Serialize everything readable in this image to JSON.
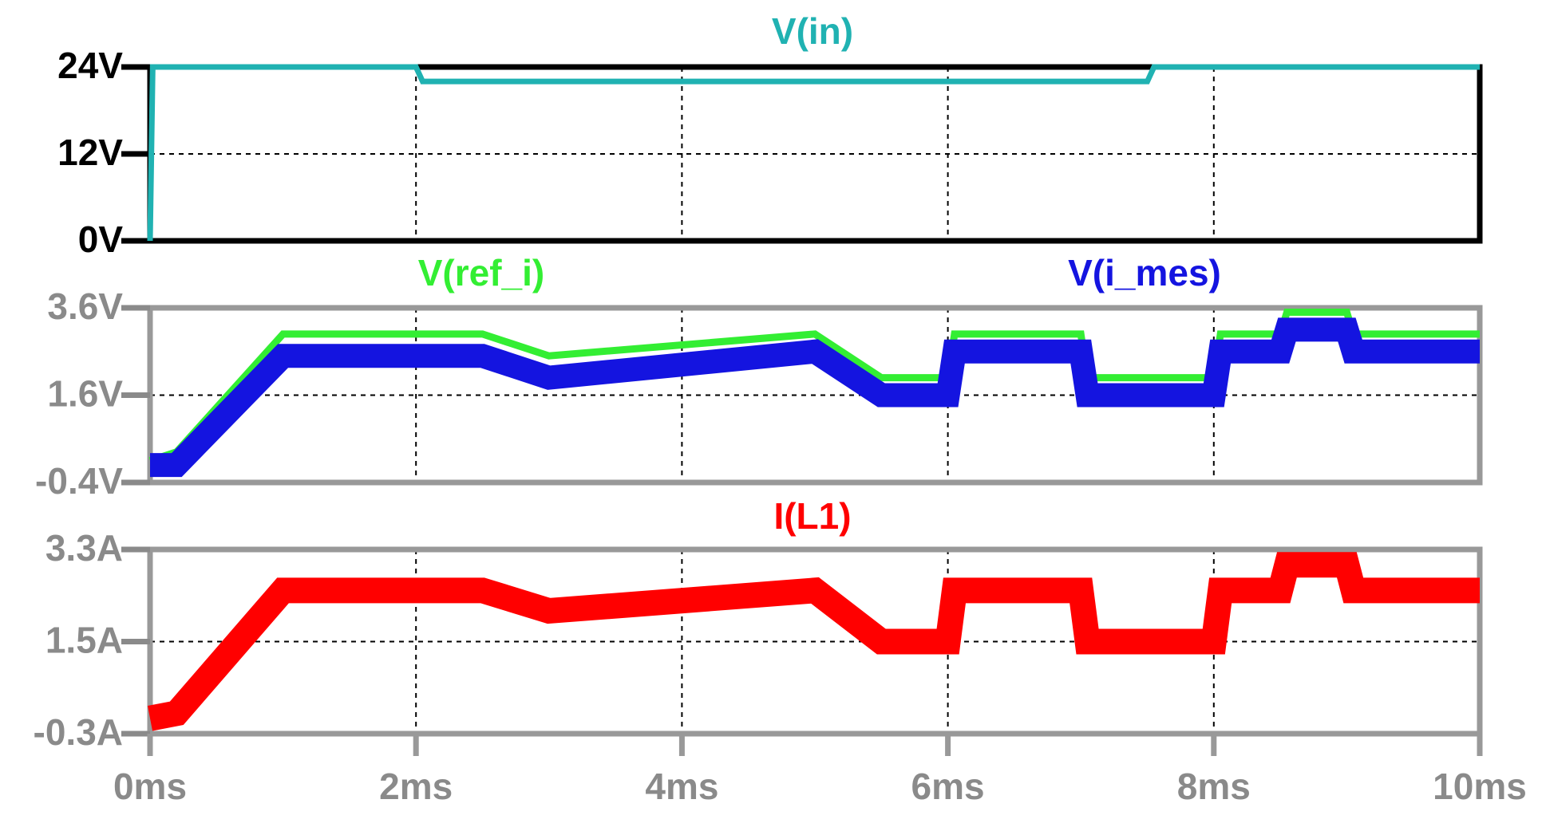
{
  "chart_data": [
    {
      "type": "line",
      "x": [
        0,
        0.02,
        2,
        2.05,
        7.5,
        7.55,
        10
      ],
      "series": [
        {
          "name": "V(in)",
          "color": "#20b2b2",
          "values": [
            0,
            24,
            24,
            22,
            22,
            24,
            24
          ]
        }
      ],
      "ylim": [
        0,
        24
      ],
      "yticks": [
        {
          "value": 0,
          "label": "0V"
        },
        {
          "value": 12,
          "label": "12V"
        },
        {
          "value": 24,
          "label": "24V"
        }
      ],
      "grid": true
    },
    {
      "type": "line",
      "x": [
        0,
        0.2,
        1,
        2.5,
        3,
        5,
        5.5,
        6,
        6.05,
        7,
        7.05,
        8,
        8.05,
        8.5,
        8.55,
        9,
        9.05,
        10
      ],
      "series": [
        {
          "name": "V(ref_i)",
          "color": "#33ee33",
          "values": [
            0.1,
            0.3,
            3.0,
            3.0,
            2.5,
            3.0,
            2.0,
            2.0,
            3.0,
            3.0,
            2.0,
            2.0,
            3.0,
            3.0,
            3.5,
            3.5,
            3.0,
            3.0
          ]
        },
        {
          "name": "V(i_mes)",
          "color": "#1414e0",
          "values": [
            0.0,
            0.0,
            2.5,
            2.5,
            2.0,
            2.6,
            1.6,
            1.6,
            2.6,
            2.6,
            1.6,
            1.6,
            2.6,
            2.6,
            3.1,
            3.1,
            2.6,
            2.6
          ]
        }
      ],
      "ylim": [
        -0.4,
        3.6
      ],
      "yticks": [
        {
          "value": -0.4,
          "label": "-0.4V"
        },
        {
          "value": 1.6,
          "label": "1.6V"
        },
        {
          "value": 3.6,
          "label": "3.6V"
        }
      ],
      "grid": true
    },
    {
      "type": "line",
      "x": [
        0,
        0.2,
        1,
        2.5,
        3,
        5,
        5.5,
        6,
        6.05,
        7,
        7.05,
        8,
        8.05,
        8.5,
        8.55,
        9,
        9.05,
        10
      ],
      "series": [
        {
          "name": "I(L1)",
          "color": "#ff0000",
          "values": [
            0.0,
            0.1,
            2.5,
            2.5,
            2.1,
            2.5,
            1.5,
            1.5,
            2.5,
            2.5,
            1.5,
            1.5,
            2.5,
            2.5,
            3.0,
            3.0,
            2.5,
            2.5
          ]
        }
      ],
      "ylim": [
        -0.3,
        3.3
      ],
      "yticks": [
        {
          "value": -0.3,
          "label": "-0.3A"
        },
        {
          "value": 1.5,
          "label": "1.5A"
        },
        {
          "value": 3.3,
          "label": "3.3A"
        }
      ],
      "xlim": [
        0,
        10
      ],
      "xticks": [
        {
          "value": 0,
          "label": "0ms"
        },
        {
          "value": 2,
          "label": "2ms"
        },
        {
          "value": 4,
          "label": "4ms"
        },
        {
          "value": 6,
          "label": "6ms"
        },
        {
          "value": 8,
          "label": "8ms"
        },
        {
          "value": 10,
          "label": "10ms"
        }
      ],
      "grid": true
    }
  ]
}
